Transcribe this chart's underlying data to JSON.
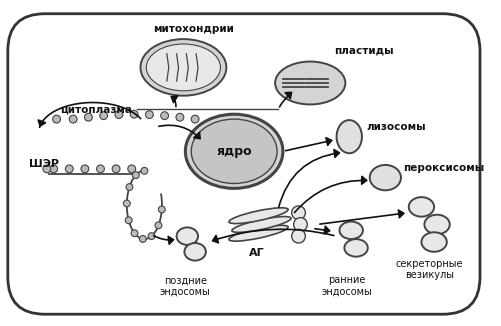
{
  "bg_color": "#ffffff",
  "cell_fill": "#ffffff",
  "cell_edge": "#333333",
  "org_fill": "#d4d4d4",
  "org_edge": "#444444",
  "arrow_color": "#111111",
  "labels": {
    "mitochondria": "митохондрии",
    "plastids": "пластиды",
    "cytoplasm": "цитоплазма",
    "nucleus": "ядро",
    "ser": "ШЭР",
    "lysosomes": "лизосомы",
    "peroxisomes": "пероксисомы",
    "ag": "АГ",
    "late_endo": "поздние\nэндосомы",
    "early_endo": "ранние\nэндосомы",
    "secretory": "секреторные\nвезикулы"
  }
}
